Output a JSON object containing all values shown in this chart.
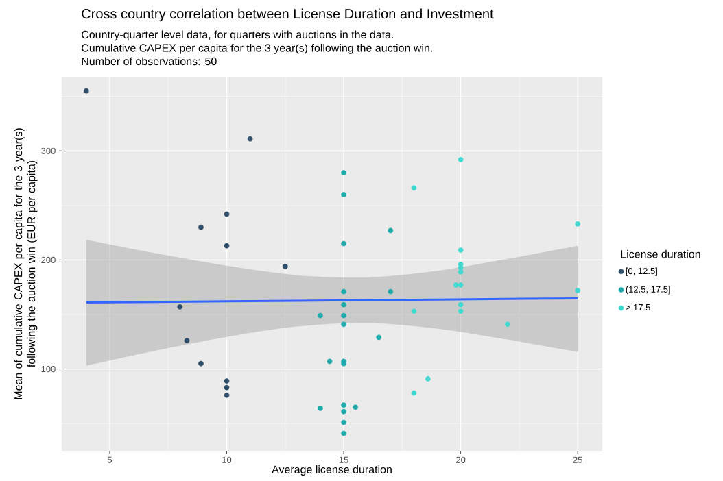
{
  "chart_data": {
    "type": "scatter",
    "title": "Cross country correlation between License Duration and Investment",
    "subtitle": "Country-quarter level data, for quarters with auctions in the data.",
    "annotations": [
      "Cumulative CAPEX per capita for the 3 year(s) following the auction win.",
      "Number of observations: 50"
    ],
    "xlabel": "Average license duration",
    "ylabel": "Mean of cumulative CAPEX per capita for the 3 year(s) following the auction win (EUR per capita)",
    "legend_title": "License duration",
    "xlim": [
      2.95,
      26.05
    ],
    "xticks": [
      5,
      10,
      15,
      20,
      25
    ],
    "ylim": [
      25,
      368
    ],
    "yticks": [
      100,
      200,
      300
    ],
    "grid": true,
    "legend": "right",
    "series": [
      {
        "name": "[0, 12.5]",
        "marker": "circle",
        "color": "#2f4f6b",
        "x": [
          4,
          11,
          10,
          8.9,
          10,
          12.5,
          8,
          8.3,
          8.9,
          10,
          10,
          10
        ],
        "values": [
          355,
          311,
          242,
          230,
          213,
          194,
          157,
          126,
          105,
          89,
          83,
          76
        ]
      },
      {
        "name": "(12.5, 17.5]",
        "marker": "circle",
        "color": "#1fa9a8",
        "x": [
          15,
          15,
          15,
          15,
          15,
          15,
          15,
          15,
          15,
          15,
          15,
          15,
          15,
          14,
          14,
          14.4,
          15.5,
          16.5,
          17,
          17
        ],
        "values": [
          280,
          260,
          215,
          171,
          159,
          149,
          141,
          107,
          105,
          67,
          61,
          51,
          41,
          149,
          64,
          107,
          65,
          129,
          171,
          227
        ]
      },
      {
        "name": "> 17.5",
        "marker": "circle",
        "color": "#40d9d0",
        "x": [
          20,
          18,
          25,
          20,
          20,
          20,
          20,
          19.8,
          20,
          25,
          18,
          20,
          20,
          22,
          18.6,
          18
        ],
        "values": [
          292,
          266,
          233,
          209,
          196,
          193,
          189,
          177,
          177,
          172,
          153,
          159,
          153,
          141,
          91,
          78
        ]
      },
      {
        "type": "line",
        "marker": "none",
        "color": "#3366ff",
        "x": [
          4,
          7,
          10,
          13,
          16,
          19,
          22,
          25
        ],
        "values": [
          161,
          161.5,
          162.1,
          162.6,
          163.2,
          163.7,
          164.3,
          164.8
        ],
        "lower": [
          103,
          117,
          129.5,
          139,
          142.3,
          137,
          127,
          115.7
        ],
        "upper": [
          218.5,
          206,
          194.7,
          186,
          184,
          190,
          201,
          213
        ]
      }
    ]
  }
}
